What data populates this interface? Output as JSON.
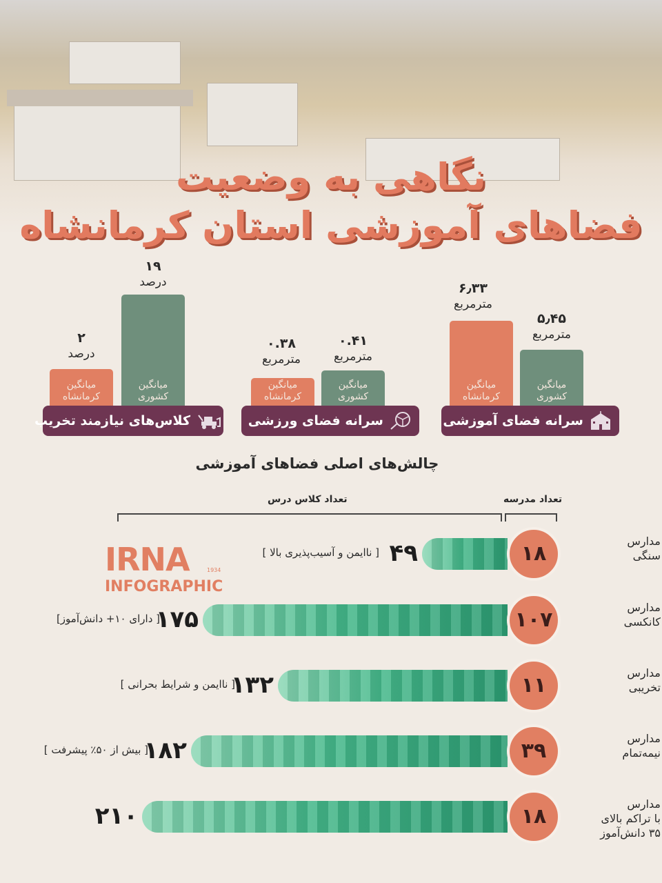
{
  "title": {
    "line1": "نگاهی به وضعیت",
    "line2": "فضاهای آموزشی استان کرمانشاه"
  },
  "colors": {
    "orange": "#e17f62",
    "green": "#6f8f7c",
    "plum": "#6e3552",
    "stripe": "#3fae84"
  },
  "stats": {
    "education_space": {
      "label": "سرانه فضای آموزشی",
      "icon": "school-building-icon",
      "kermanshah": {
        "value": "۶٫۳۳",
        "unit": "مترمربع",
        "bar_label_1": "میانگین",
        "bar_label_2": "کرمانشاه"
      },
      "national": {
        "value": "۵٫۴۵",
        "unit": "مترمربع",
        "bar_label_1": "میانگین",
        "bar_label_2": "کشوری"
      }
    },
    "sports_space": {
      "label": "سرانه فضای ورزشی",
      "icon": "ball-icon",
      "kermanshah": {
        "value": "۰.۳۸",
        "unit": "مترمربع",
        "bar_label_1": "میانگین",
        "bar_label_2": "کرمانشاه"
      },
      "national": {
        "value": "۰.۴۱",
        "unit": "مترمربع",
        "bar_label_1": "میانگین",
        "bar_label_2": "کشوری"
      }
    },
    "demolition": {
      "label": "کلاس‌های نیازمند تخریب",
      "icon": "bulldozer-icon",
      "kermanshah": {
        "value": "۲",
        "unit": "درصد",
        "bar_label_1": "میانگین",
        "bar_label_2": "کرمانشاه"
      },
      "national": {
        "value": "۱۹",
        "unit": "درصد",
        "bar_label_1": "میانگین",
        "bar_label_2": "کشوری"
      }
    }
  },
  "challenges": {
    "title": "چالش‌های اصلی فضاهای آموزشی",
    "col_schools": "تعداد مدرسه",
    "col_classes": "تعداد کلاس درس",
    "rows": [
      {
        "label_1": "مدارس",
        "label_2": "سنگی",
        "label_3": "",
        "schools": "۱۸",
        "classes": "۴۹",
        "note": "[ ناایمن و آسیب‌پذیری بالا ]"
      },
      {
        "label_1": "مدارس",
        "label_2": "کانکسی",
        "label_3": "",
        "schools": "۱۰۷",
        "classes": "۱۷۵",
        "note": "[ دارای ۱۰+ دانش‌آموز]"
      },
      {
        "label_1": "مدارس",
        "label_2": "تخریبی",
        "label_3": "",
        "schools": "۱۱",
        "classes": "۱۳۲",
        "note": "[ ناایمن و شرایط بحرانی ]"
      },
      {
        "label_1": "مدارس",
        "label_2": "نیمه‌تمام",
        "label_3": "",
        "schools": "۳۹",
        "classes": "۱۸۲",
        "note": "[ بیش از ۵۰٪ پیشرفت ]"
      },
      {
        "label_1": "مدارس",
        "label_2": "با تراکم بالای",
        "label_3": "۳۵ دانش‌آموز",
        "schools": "۱۸",
        "classes": "۲۱۰",
        "note": ""
      }
    ]
  },
  "chart_data": [
    {
      "type": "bar",
      "title": "سرانه فضای آموزشی",
      "categories": [
        "میانگین کرمانشاه",
        "میانگین کشوری"
      ],
      "values": [
        6.33,
        5.45
      ],
      "unit": "مترمربع"
    },
    {
      "type": "bar",
      "title": "سرانه فضای ورزشی",
      "categories": [
        "میانگین کرمانشاه",
        "میانگین کشوری"
      ],
      "values": [
        0.38,
        0.41
      ],
      "unit": "مترمربع"
    },
    {
      "type": "bar",
      "title": "کلاس‌های نیازمند تخریب",
      "categories": [
        "میانگین کرمانشاه",
        "میانگین کشوری"
      ],
      "values": [
        2,
        19
      ],
      "unit": "درصد"
    },
    {
      "type": "bar",
      "title": "چالش‌های اصلی فضاهای آموزشی",
      "categories": [
        "مدارس سنگی",
        "مدارس کانکسی",
        "مدارس تخریبی",
        "مدارس نیمه‌تمام",
        "مدارس با تراکم بالای ۳۵ دانش‌آموز"
      ],
      "series": [
        {
          "name": "تعداد مدرسه",
          "values": [
            18,
            107,
            11,
            39,
            18
          ]
        },
        {
          "name": "تعداد کلاس درس",
          "values": [
            49,
            175,
            132,
            182,
            210
          ]
        }
      ]
    }
  ],
  "logo": {
    "brand": "IRNA",
    "sub": "INFOGRAPHIC",
    "year": "1934"
  }
}
